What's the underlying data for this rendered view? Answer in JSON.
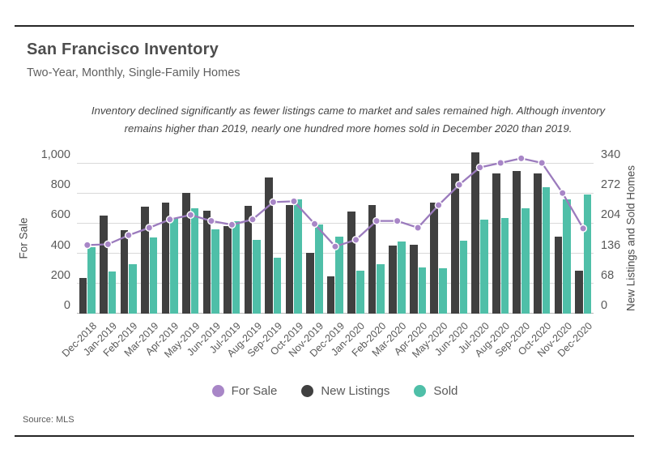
{
  "header": {
    "title": "San Francisco Inventory",
    "subtitle": "Two-Year, Monthly, Single-Family Homes"
  },
  "annotation": {
    "text": "Inventory declined significantly as fewer listings came to market and sales remained high. Although inventory remains higher than 2019, nearly one hundred more homes sold in December 2020 than 2019."
  },
  "source": "Source:  MLS",
  "colors": {
    "for_sale_line": "#9b7bbd",
    "for_sale_dot": "#a886c7",
    "new_listings_bar": "#404040",
    "sold_bar": "#4fbfa8",
    "gridline": "#d9d9d9",
    "axis_line": "#b7b7b7",
    "text": "#595959"
  },
  "chart_data": {
    "type": "combo_bar_line",
    "title": "San Francisco Inventory",
    "subtitle": "Two-Year, Monthly, Single-Family Homes",
    "grid": "horizontal",
    "legend_position": "bottom",
    "categories": [
      "Dec-2018",
      "Jan-2019",
      "Feb-2019",
      "Mar-2019",
      "Apr-2019",
      "May-2019",
      "Jun-2019",
      "Jul-2019",
      "Aug-2019",
      "Sep-2019",
      "Oct-2019",
      "Nov-2019",
      "Dec-2019",
      "Jan-2020",
      "Feb-2020",
      "Mar-2020",
      "Apr-2020",
      "May-2020",
      "Jun-2020",
      "Jul-2020",
      "Aug-2020",
      "Sep-2020",
      "Oct-2020",
      "Nov-2020",
      "Dec-2020"
    ],
    "series": [
      {
        "name": "For Sale",
        "type": "line",
        "axis": "left",
        "color": "#a886c7",
        "values": [
          455,
          460,
          520,
          570,
          625,
          655,
          615,
          590,
          625,
          740,
          745,
          595,
          445,
          490,
          615,
          615,
          570,
          720,
          855,
          970,
          1000,
          1030,
          1000,
          800,
          565
        ]
      },
      {
        "name": "New Listings",
        "type": "bar",
        "axis": "right",
        "color": "#404040",
        "values": [
          80,
          222,
          188,
          242,
          251,
          272,
          232,
          197,
          243,
          308,
          245,
          138,
          84,
          231,
          245,
          153,
          156,
          251,
          316,
          363,
          316,
          322,
          316,
          173,
          97
        ]
      },
      {
        "name": "Sold",
        "type": "bar",
        "axis": "right",
        "color": "#4fbfa8",
        "values": [
          150,
          95,
          112,
          172,
          215,
          238,
          190,
          209,
          167,
          127,
          257,
          202,
          174,
          96,
          111,
          162,
          105,
          103,
          164,
          212,
          215,
          238,
          285,
          258,
          269
        ]
      }
    ],
    "left_axis": {
      "label": "For Sale",
      "max": 1000,
      "tick_values": [
        1000,
        800,
        600,
        400,
        200,
        0
      ],
      "tick_labels": [
        "1,000",
        "800",
        "600",
        "400",
        "200",
        "0"
      ]
    },
    "right_axis": {
      "label": "New Listings and Sold Homes",
      "max": 340,
      "tick_values": [
        340,
        272,
        204,
        136,
        68,
        0
      ],
      "tick_labels": [
        "340",
        "272",
        "204",
        "136",
        "68",
        "0"
      ]
    }
  }
}
